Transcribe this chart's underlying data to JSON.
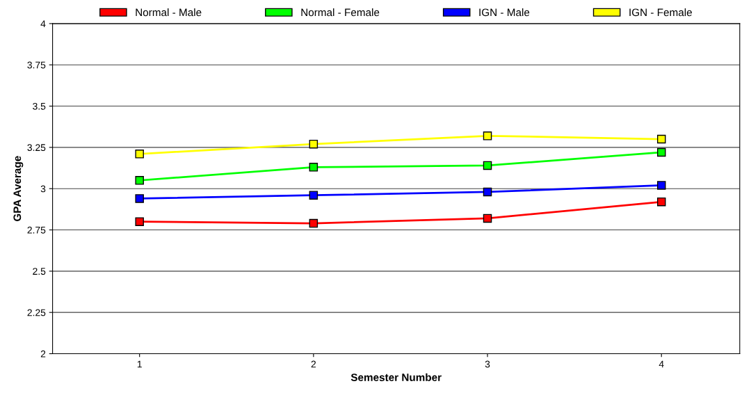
{
  "chart_data": {
    "type": "line",
    "xlabel": "Semester Number",
    "ylabel": "GPA Average",
    "x": [
      1,
      2,
      3,
      4
    ],
    "xlim": [
      0.5,
      4.45
    ],
    "xticks": [
      1,
      2,
      3,
      4
    ],
    "ylim": [
      2,
      4
    ],
    "yticks": [
      2,
      2.25,
      2.5,
      2.75,
      3,
      3.25,
      3.5,
      3.75,
      4
    ],
    "grid": "y",
    "legend": "top",
    "marker": "square",
    "line_style": "solid",
    "series": [
      {
        "name": "Normal - Male",
        "color": "#ff0000",
        "values": [
          2.8,
          2.79,
          2.82,
          2.92
        ]
      },
      {
        "name": "Normal - Female",
        "color": "#00ff00",
        "values": [
          3.05,
          3.13,
          3.14,
          3.22
        ]
      },
      {
        "name": "IGN - Male",
        "color": "#0000ff",
        "values": [
          2.94,
          2.96,
          2.98,
          3.02
        ]
      },
      {
        "name": "IGN - Female",
        "color": "#ffff00",
        "values": [
          3.21,
          3.27,
          3.32,
          3.3
        ]
      }
    ]
  }
}
